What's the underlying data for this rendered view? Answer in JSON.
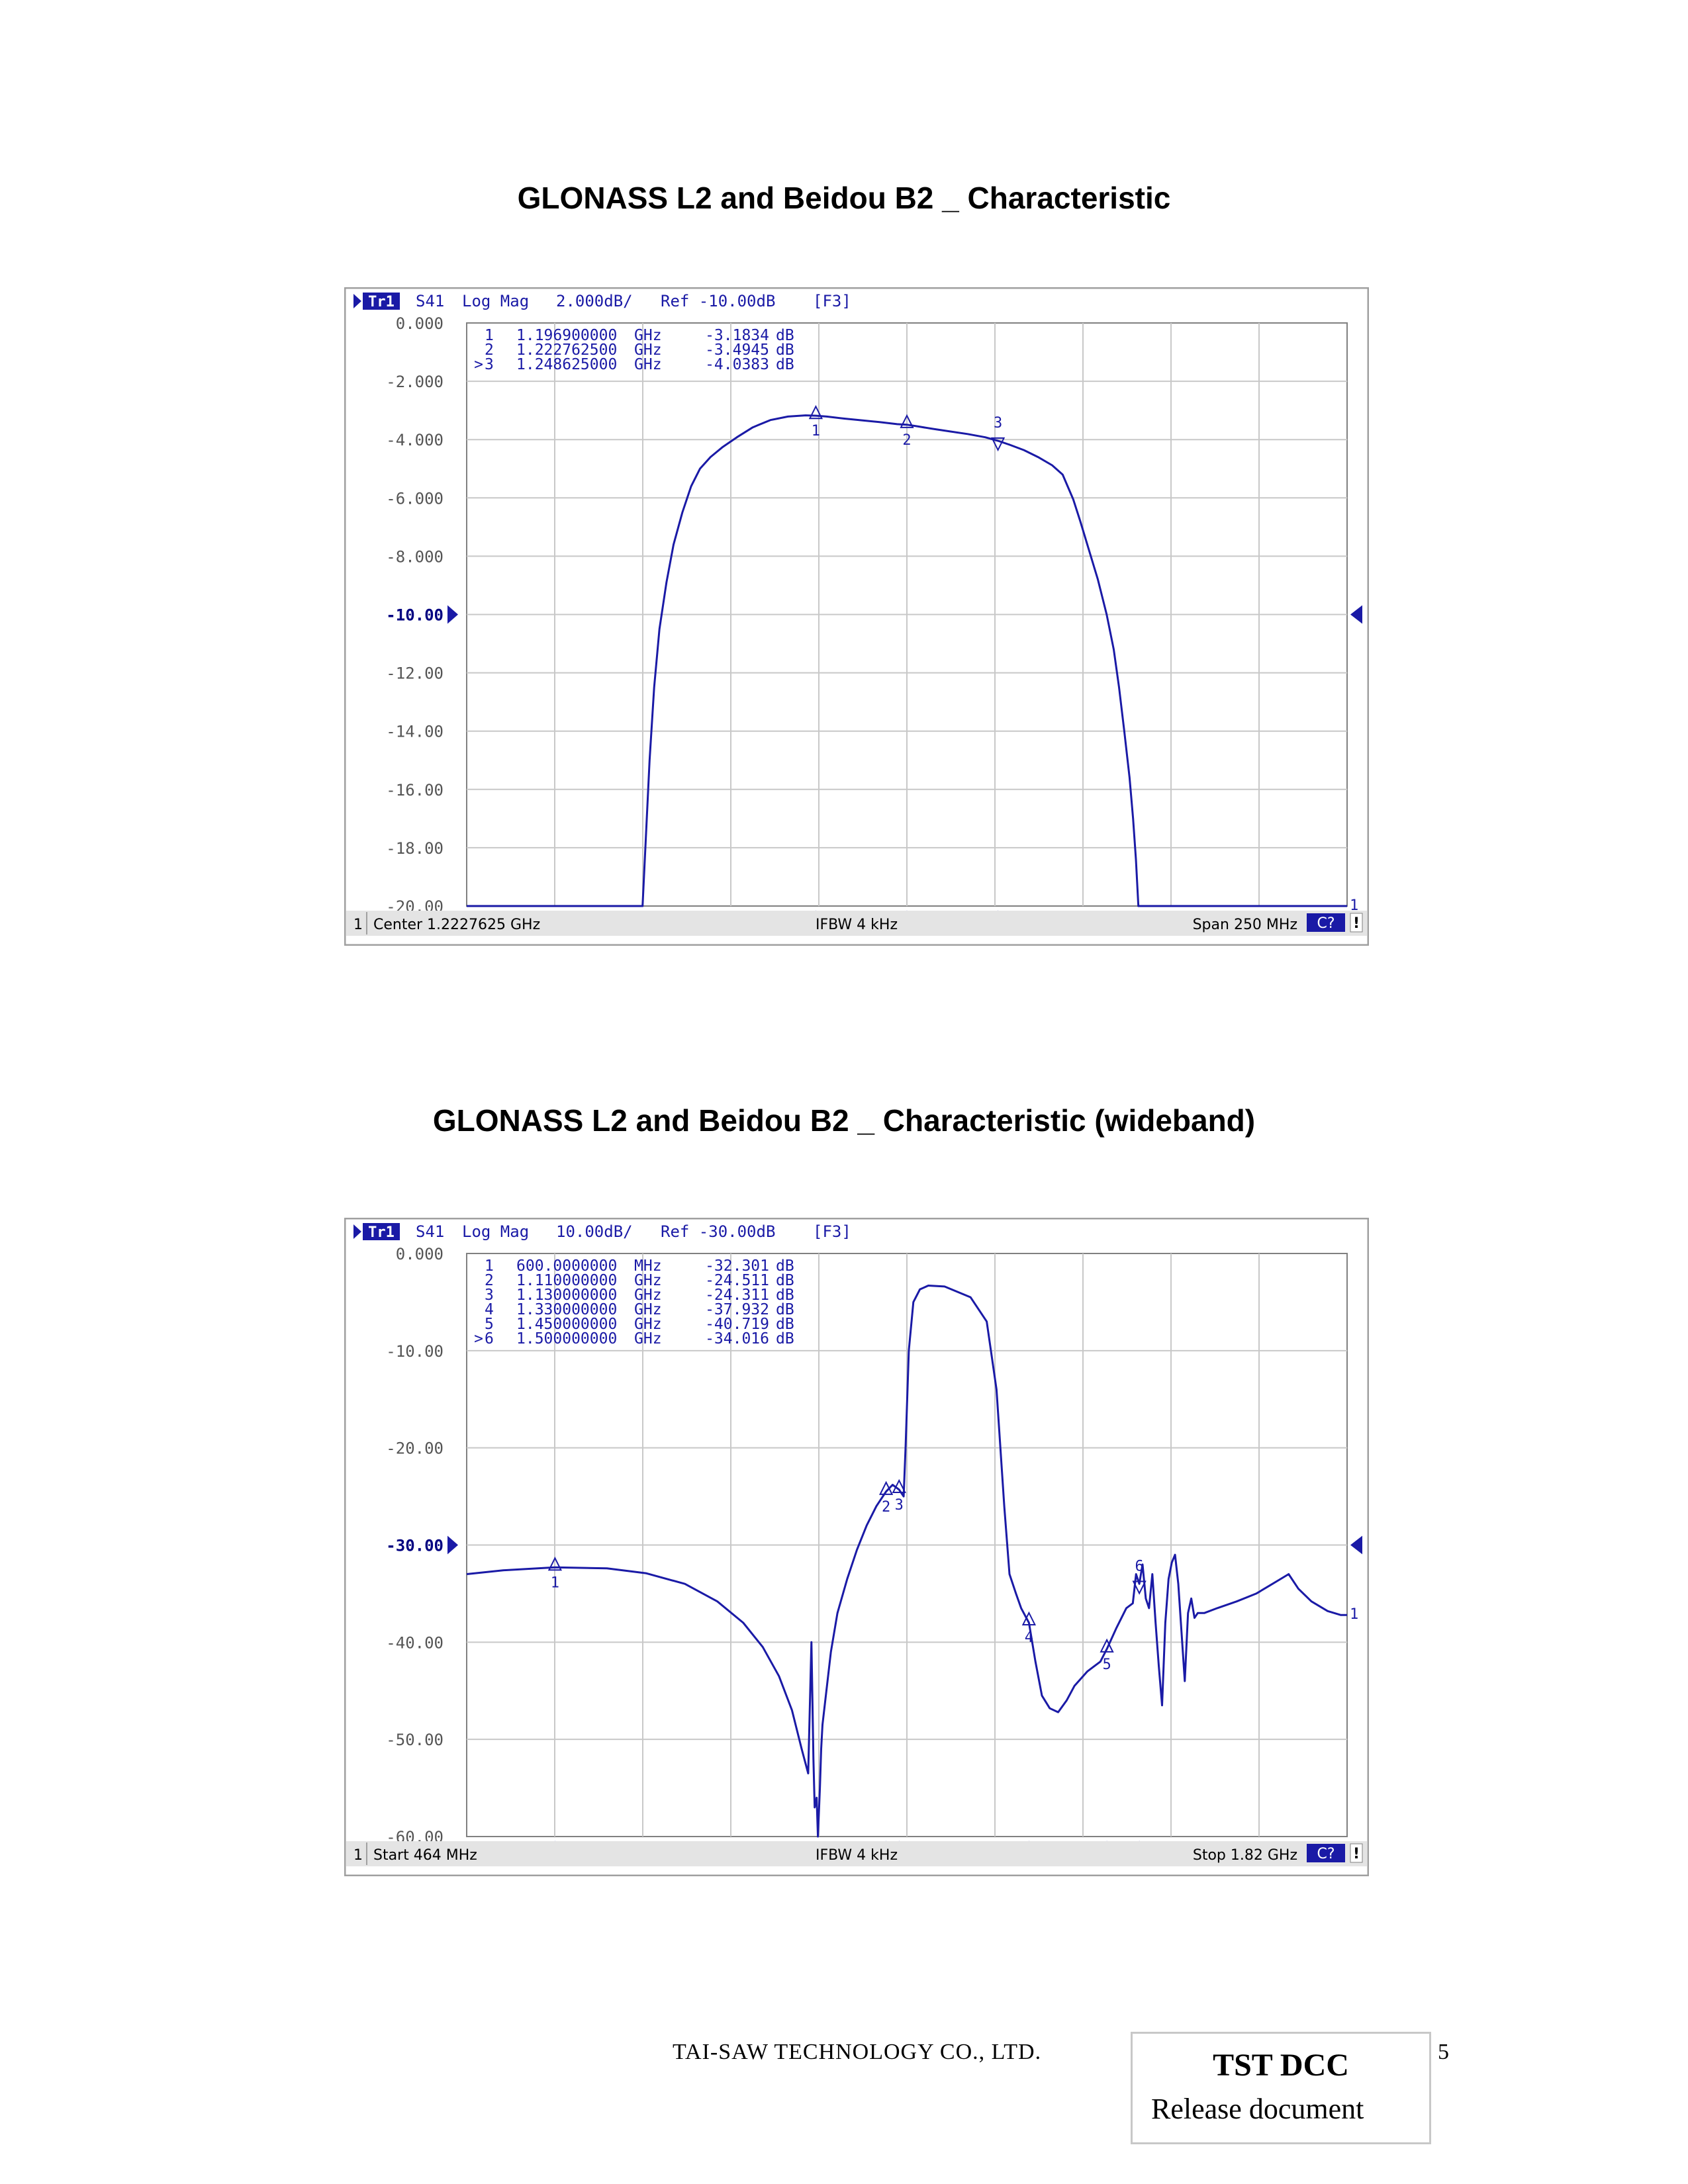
{
  "page": {
    "title_top": "GLONASS L2 and Beidou B2 _ Characteristic",
    "title_bottom": "GLONASS L2 and Beidou B2 _ Characteristic (wideband)",
    "footer_company": "TAI-SAW  TECHNOLOGY  CO.,  LTD.",
    "footer_box_title": "TST DCC",
    "footer_box_subtitle": "Release document",
    "page_number": "5"
  },
  "chart_data": [
    {
      "type": "line",
      "header": {
        "trace": "Tr1",
        "param": "S41",
        "format": "Log Mag",
        "scale": "2.000dB/",
        "ref": "Ref -10.00dB",
        "channel": "[F3]"
      },
      "footer": {
        "channel": "1",
        "left": "Center 1.2227625 GHz",
        "center": "IFBW 4 kHz",
        "right": "Span 250 MHz",
        "badge": "C?",
        "excl": "!"
      },
      "y_ticks": [
        "0.000",
        "-2.000",
        "-4.000",
        "-6.000",
        "-8.000",
        "-10.00",
        "-12.00",
        "-14.00",
        "-16.00",
        "-18.00",
        "-20.00"
      ],
      "ylim": [
        -20,
        0
      ],
      "ref_level": -10,
      "xlim_ghz": [
        1.0977625,
        1.3477625
      ],
      "markers": [
        {
          "id": "1",
          "prefix": "",
          "freq": "1.196900000",
          "unit": "GHz",
          "value": "-3.1834",
          "vunit": "dB",
          "x": 1.1969,
          "y": -3.1834,
          "label_below": true
        },
        {
          "id": "2",
          "prefix": "",
          "freq": "1.222762500",
          "unit": "GHz",
          "value": "-3.4945",
          "vunit": "dB",
          "x": 1.2227625,
          "y": -3.4945,
          "label_below": true
        },
        {
          "id": "3",
          "prefix": ">",
          "freq": "1.248625000",
          "unit": "GHz",
          "value": "-4.0383",
          "vunit": "dB",
          "x": 1.248625,
          "y": -4.0383,
          "label_below": false,
          "active": true
        }
      ],
      "series": [
        {
          "color": "#1a1aa6",
          "x": [
            1.0977625,
            1.1477,
            1.1487,
            1.1497,
            1.151,
            1.1525,
            1.1545,
            1.1565,
            1.159,
            1.1615,
            1.164,
            1.167,
            1.1705,
            1.1745,
            1.179,
            1.184,
            1.189,
            1.194,
            1.1969,
            1.2,
            1.205,
            1.21,
            1.215,
            1.22,
            1.2227625,
            1.226,
            1.23,
            1.235,
            1.24,
            1.245,
            1.2486,
            1.252,
            1.256,
            1.26,
            1.264,
            1.267,
            1.27,
            1.272,
            1.2745,
            1.277,
            1.2795,
            1.2815,
            1.283,
            1.2845,
            1.286,
            1.287,
            1.2878,
            1.2885,
            1.3477625
          ],
          "y": [
            -20,
            -20,
            -17.5,
            -15.0,
            -12.5,
            -10.5,
            -8.9,
            -7.6,
            -6.5,
            -5.6,
            -5.0,
            -4.6,
            -4.25,
            -3.92,
            -3.58,
            -3.33,
            -3.21,
            -3.17,
            -3.18,
            -3.21,
            -3.28,
            -3.34,
            -3.4,
            -3.47,
            -3.49,
            -3.55,
            -3.63,
            -3.72,
            -3.81,
            -3.92,
            -4.04,
            -4.18,
            -4.36,
            -4.6,
            -4.88,
            -5.2,
            -6.05,
            -6.8,
            -7.8,
            -8.8,
            -10.0,
            -11.2,
            -12.5,
            -14.0,
            -15.6,
            -17.0,
            -18.4,
            -20,
            -20
          ]
        }
      ]
    },
    {
      "type": "line",
      "header": {
        "trace": "Tr1",
        "param": "S41",
        "format": "Log Mag",
        "scale": "10.00dB/",
        "ref": "Ref -30.00dB",
        "channel": "[F3]"
      },
      "footer": {
        "channel": "1",
        "left": "Start 464 MHz",
        "center": "IFBW 4 kHz",
        "right": "Stop 1.82 GHz",
        "badge": "C?",
        "excl": "!"
      },
      "y_ticks": [
        "0.000",
        "-10.00",
        "-20.00",
        "-30.00",
        "-40.00",
        "-50.00",
        "-60.00"
      ],
      "ylim": [
        -60,
        0
      ],
      "ref_level": -30,
      "xlim_mhz": [
        464,
        1820
      ],
      "markers": [
        {
          "id": "1",
          "prefix": "",
          "freq": "600.0000000",
          "unit": "MHz",
          "value": "-32.301",
          "vunit": "dB",
          "x": 600,
          "y": -32.301
        },
        {
          "id": "2",
          "prefix": "",
          "freq": "1.110000000",
          "unit": "GHz",
          "value": "-24.511",
          "vunit": "dB",
          "x": 1110,
          "y": -24.511
        },
        {
          "id": "3",
          "prefix": "",
          "freq": "1.130000000",
          "unit": "GHz",
          "value": "-24.311",
          "vunit": "dB",
          "x": 1130,
          "y": -24.311
        },
        {
          "id": "4",
          "prefix": "",
          "freq": "1.330000000",
          "unit": "GHz",
          "value": "-37.932",
          "vunit": "dB",
          "x": 1330,
          "y": -37.932
        },
        {
          "id": "5",
          "prefix": "",
          "freq": "1.450000000",
          "unit": "GHz",
          "value": "-40.719",
          "vunit": "dB",
          "x": 1450,
          "y": -40.719
        },
        {
          "id": "6",
          "prefix": ">",
          "freq": "1.500000000",
          "unit": "GHz",
          "value": "-34.016",
          "vunit": "dB",
          "x": 1500,
          "y": -34.016,
          "label_above": true,
          "active": true
        }
      ],
      "series": [
        {
          "color": "#1a1aa6",
          "x": [
            464,
            520,
            600,
            680,
            740,
            800,
            850,
            890,
            920,
            945,
            965,
            980,
            990,
            995,
            998,
            1000,
            1003,
            1005,
            1008,
            1010,
            1012,
            1018,
            1025,
            1035,
            1050,
            1065,
            1080,
            1095,
            1110,
            1120,
            1130,
            1137,
            1140,
            1145,
            1152,
            1162,
            1175,
            1200,
            1240,
            1265,
            1280,
            1292,
            1300,
            1310,
            1318,
            1330,
            1340,
            1350,
            1362,
            1375,
            1388,
            1400,
            1420,
            1440,
            1450,
            1465,
            1480,
            1490,
            1495,
            1500,
            1505,
            1510,
            1515,
            1520,
            1525,
            1530,
            1535,
            1540,
            1545,
            1550,
            1555,
            1560,
            1565,
            1570,
            1575,
            1580,
            1585,
            1590,
            1600,
            1620,
            1650,
            1680,
            1700,
            1715,
            1730,
            1745,
            1765,
            1790,
            1810,
            1820
          ],
          "y": [
            -33.0,
            -32.6,
            -32.3,
            -32.4,
            -32.9,
            -34.0,
            -35.8,
            -38.0,
            -40.5,
            -43.5,
            -47.0,
            -51.0,
            -53.5,
            -40.0,
            -52.0,
            -57.0,
            -56.0,
            -60.0,
            -55.0,
            -51.0,
            -48.5,
            -45.0,
            -41.0,
            -37.0,
            -33.5,
            -30.5,
            -28.0,
            -26.0,
            -24.5,
            -23.8,
            -24.3,
            -25.0,
            -20.0,
            -10.0,
            -5.0,
            -3.7,
            -3.3,
            -3.4,
            -4.5,
            -7.0,
            -14.0,
            -26.0,
            -33.0,
            -35.0,
            -36.5,
            -38.0,
            -42.0,
            -45.5,
            -46.8,
            -47.2,
            -46.0,
            -44.5,
            -43.0,
            -42.0,
            -40.7,
            -38.5,
            -36.5,
            -36.0,
            -33.0,
            -34.0,
            -32.0,
            -35.5,
            -36.5,
            -33.0,
            -38.0,
            -42.5,
            -46.5,
            -38.0,
            -33.5,
            -31.8,
            -31.0,
            -34.0,
            -39.0,
            -44.0,
            -37.0,
            -35.5,
            -37.5,
            -37.0,
            -37.0,
            -36.5,
            -35.8,
            -35.0,
            -34.2,
            -33.6,
            -33.0,
            -34.5,
            -35.8,
            -36.8,
            -37.2,
            -37.2
          ]
        }
      ]
    }
  ]
}
